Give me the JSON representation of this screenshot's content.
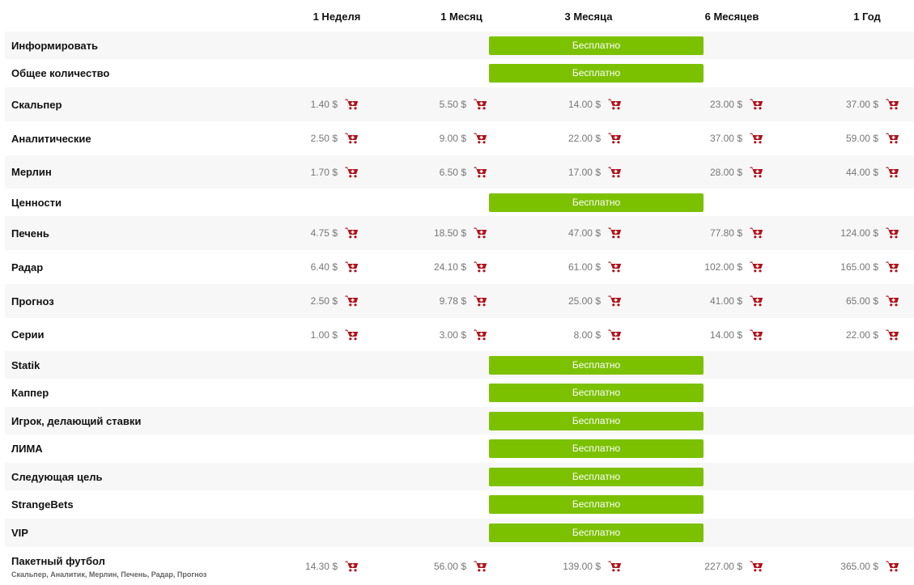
{
  "columns": [
    "1 Неделя",
    "1 Месяц",
    "3 Месяца",
    "6 Месяцев",
    "1 Год"
  ],
  "free_label": "Бесплатно",
  "cart_icon": "cart-add-icon",
  "colors": {
    "free_bar": "#7bc100",
    "cart": "#b0101a",
    "price_text": "#777777",
    "alt_row": "#f7f7f7"
  },
  "rows": [
    {
      "name": "Информировать",
      "free": true
    },
    {
      "name": "Общее количество",
      "free": true
    },
    {
      "name": "Скальпер",
      "prices": [
        "1.40 $",
        "5.50 $",
        "14.00 $",
        "23.00 $",
        "37.00 $"
      ]
    },
    {
      "name": "Аналитические",
      "prices": [
        "2.50 $",
        "9.00 $",
        "22.00 $",
        "37.00 $",
        "59.00 $"
      ]
    },
    {
      "name": "Мерлин",
      "prices": [
        "1.70 $",
        "6.50 $",
        "17.00 $",
        "28.00 $",
        "44.00 $"
      ]
    },
    {
      "name": "Ценности",
      "free": true
    },
    {
      "name": "Печень",
      "prices": [
        "4.75 $",
        "18.50 $",
        "47.00 $",
        "77.80 $",
        "124.00 $"
      ]
    },
    {
      "name": "Радар",
      "prices": [
        "6.40 $",
        "24.10 $",
        "61.00 $",
        "102.00 $",
        "165.00 $"
      ]
    },
    {
      "name": "Прогноз",
      "prices": [
        "2.50 $",
        "9.78 $",
        "25.00 $",
        "41.00 $",
        "65.00 $"
      ]
    },
    {
      "name": "Серии",
      "prices": [
        "1.00 $",
        "3.00 $",
        "8.00 $",
        "14.00 $",
        "22.00 $"
      ]
    },
    {
      "name": "Statik",
      "free": true
    },
    {
      "name": "Каппер",
      "free": true
    },
    {
      "name": "Игрок, делающий ставки",
      "free": true
    },
    {
      "name": "ЛИМА",
      "free": true
    },
    {
      "name": "Следующая цель",
      "free": true
    },
    {
      "name": "StrangeBets",
      "free": true
    },
    {
      "name": "VIP",
      "free": true
    },
    {
      "name": "Пакетный футбол",
      "subtitle": "Скальпер, Аналитик, Мерлин, Печень, Радар, Прогноз",
      "prices": [
        "14.30 $",
        "56.00 $",
        "139.00 $",
        "227.00 $",
        "365.00 $"
      ]
    }
  ]
}
